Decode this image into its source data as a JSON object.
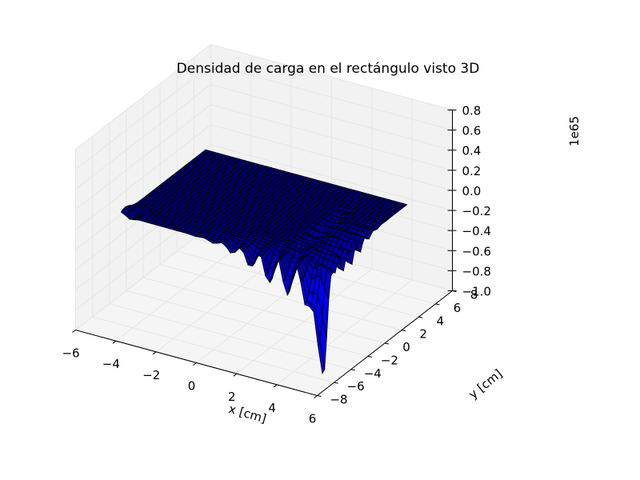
{
  "chart_data": {
    "type": "surface3d",
    "title": "Densidad de carga en el rectángulo visto 3D",
    "xlabel": "x [cm]",
    "ylabel": "y [cm]",
    "zlabel": "",
    "z_offset_label": "1e65",
    "xlim": [
      -6,
      6
    ],
    "ylim": [
      -8,
      8
    ],
    "zlim": [
      -1.0,
      0.8
    ],
    "x_ticks": [
      "−6",
      "−4",
      "−2",
      "0",
      "2",
      "4",
      "6"
    ],
    "y_ticks": [
      "−8",
      "−6",
      "−4",
      "−2",
      "0",
      "2",
      "4",
      "6",
      "8"
    ],
    "z_ticks": [
      "−1.0",
      "−0.8",
      "−0.6",
      "−0.4",
      "−0.2",
      "0.0",
      "0.2",
      "0.4",
      "0.6",
      "0.8"
    ],
    "surface_color": "#0000ff",
    "edge_color": "#000000",
    "grid": true
  }
}
